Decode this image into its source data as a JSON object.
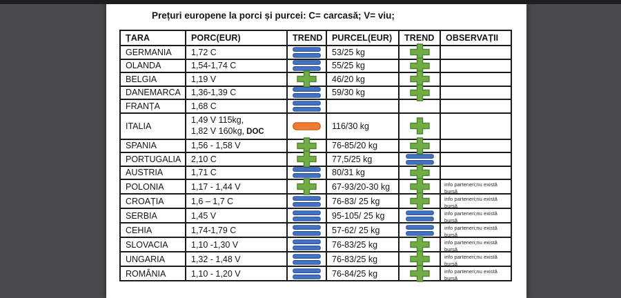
{
  "title": "Prețuri europene la porci și purcei: C= carcasă; V= viu;",
  "colors": {
    "trend_up": "#70ad47",
    "trend_up_border": "#548235",
    "trend_stable": "#4472c4",
    "trend_stable_border": "#2f5597",
    "trend_down": "#ed7d31",
    "trend_down_border": "#c55a11"
  },
  "table": {
    "headers": [
      "ȚARA",
      "PORC(EUR)",
      "TREND",
      "PURCEL(EUR)",
      "TREND",
      "OBSERVAȚII"
    ],
    "rows": [
      {
        "country": "GERMANIA",
        "porc": "1,72 C",
        "porc_trend": "stable",
        "purcel": "53/25 kg",
        "purcel_trend": "up",
        "obs": ""
      },
      {
        "country": "OLANDA",
        "porc": "1,54-1,74 C",
        "porc_trend": "stable",
        "purcel": "55/25 kg",
        "purcel_trend": "up",
        "obs": ""
      },
      {
        "country": "BELGIA",
        "porc": "1,19 V",
        "porc_trend": "up",
        "purcel": "46/20 kg",
        "purcel_trend": "up",
        "obs": ""
      },
      {
        "country": "DANEMARCA",
        "porc": "1,36-1,39 C",
        "porc_trend": "stable",
        "purcel": "59/30 kg",
        "purcel_trend": "up",
        "obs": ""
      },
      {
        "country": "FRANȚA",
        "porc": "1,68 C",
        "porc_trend": "stable",
        "purcel": "",
        "purcel_trend": "",
        "obs": ""
      },
      {
        "country": "ITALIA",
        "porc": "1,49  V 115kg,",
        "porc2": "1,82 V 160kg,",
        "porc2_bold": "DOC",
        "porc_trend": "down",
        "purcel": "116/30 kg",
        "purcel_trend": "up",
        "obs": ""
      },
      {
        "country": "SPANIA",
        "porc": "1,56 - 1,58 V",
        "porc_trend": "up",
        "purcel": "76-85/20 kg",
        "purcel_trend": "up",
        "obs": ""
      },
      {
        "country": "PORTUGALIA",
        "porc": "2,10 C",
        "porc_trend": "up",
        "purcel": "77,5/25 kg",
        "purcel_trend": "stable",
        "obs": ""
      },
      {
        "country": "AUSTRIA",
        "porc": "1,71 C",
        "porc_trend": "stable",
        "purcel": "80/31 kg",
        "purcel_trend": "up",
        "obs": ""
      },
      {
        "country": "POLONIA",
        "porc": "1,17 - 1,44 V",
        "porc_trend": "up",
        "purcel": "67-93/20-30 kg",
        "purcel_trend": "up",
        "obs": "info parteneri;nu există bursă"
      },
      {
        "country": "CROAȚIA",
        "porc": "1,6 – 1,7 C",
        "porc_trend": "stable",
        "purcel": "76-83/ 25 kg",
        "purcel_trend": "up",
        "obs": "info parteneri;nu există bursă"
      },
      {
        "country": "SERBIA",
        "porc": "1,45 V",
        "porc_trend": "stable",
        "purcel": "95-105/ 25 kg",
        "purcel_trend": "stable",
        "obs": "info parteneri;nu există bursă"
      },
      {
        "country": "CEHIA",
        "porc": "1,74-1,79 C",
        "porc_trend": "stable",
        "purcel": "57-62/ 25 kg",
        "purcel_trend": "stable",
        "obs": "info parteneri;nu există bursă"
      },
      {
        "country": "SLOVACIA",
        "porc": "1,10 -1,30 V",
        "porc_trend": "stable",
        "purcel": "76-83/25 kg",
        "purcel_trend": "up",
        "obs": "info parteneri;nu există bursă"
      },
      {
        "country": "UNGARIA",
        "porc": "1,32 - 1,48 V",
        "porc_trend": "stable",
        "purcel": "76-83/25 kg",
        "purcel_trend": "up",
        "obs": "info parteneri;nu există bursă"
      },
      {
        "country": "ROMÂNIA",
        "porc": "1,10 - 1,20 V",
        "porc_trend": "stable",
        "purcel": "76-84/25 kg",
        "purcel_trend": "up",
        "obs": "info parteneri;nu există bursă"
      }
    ]
  }
}
